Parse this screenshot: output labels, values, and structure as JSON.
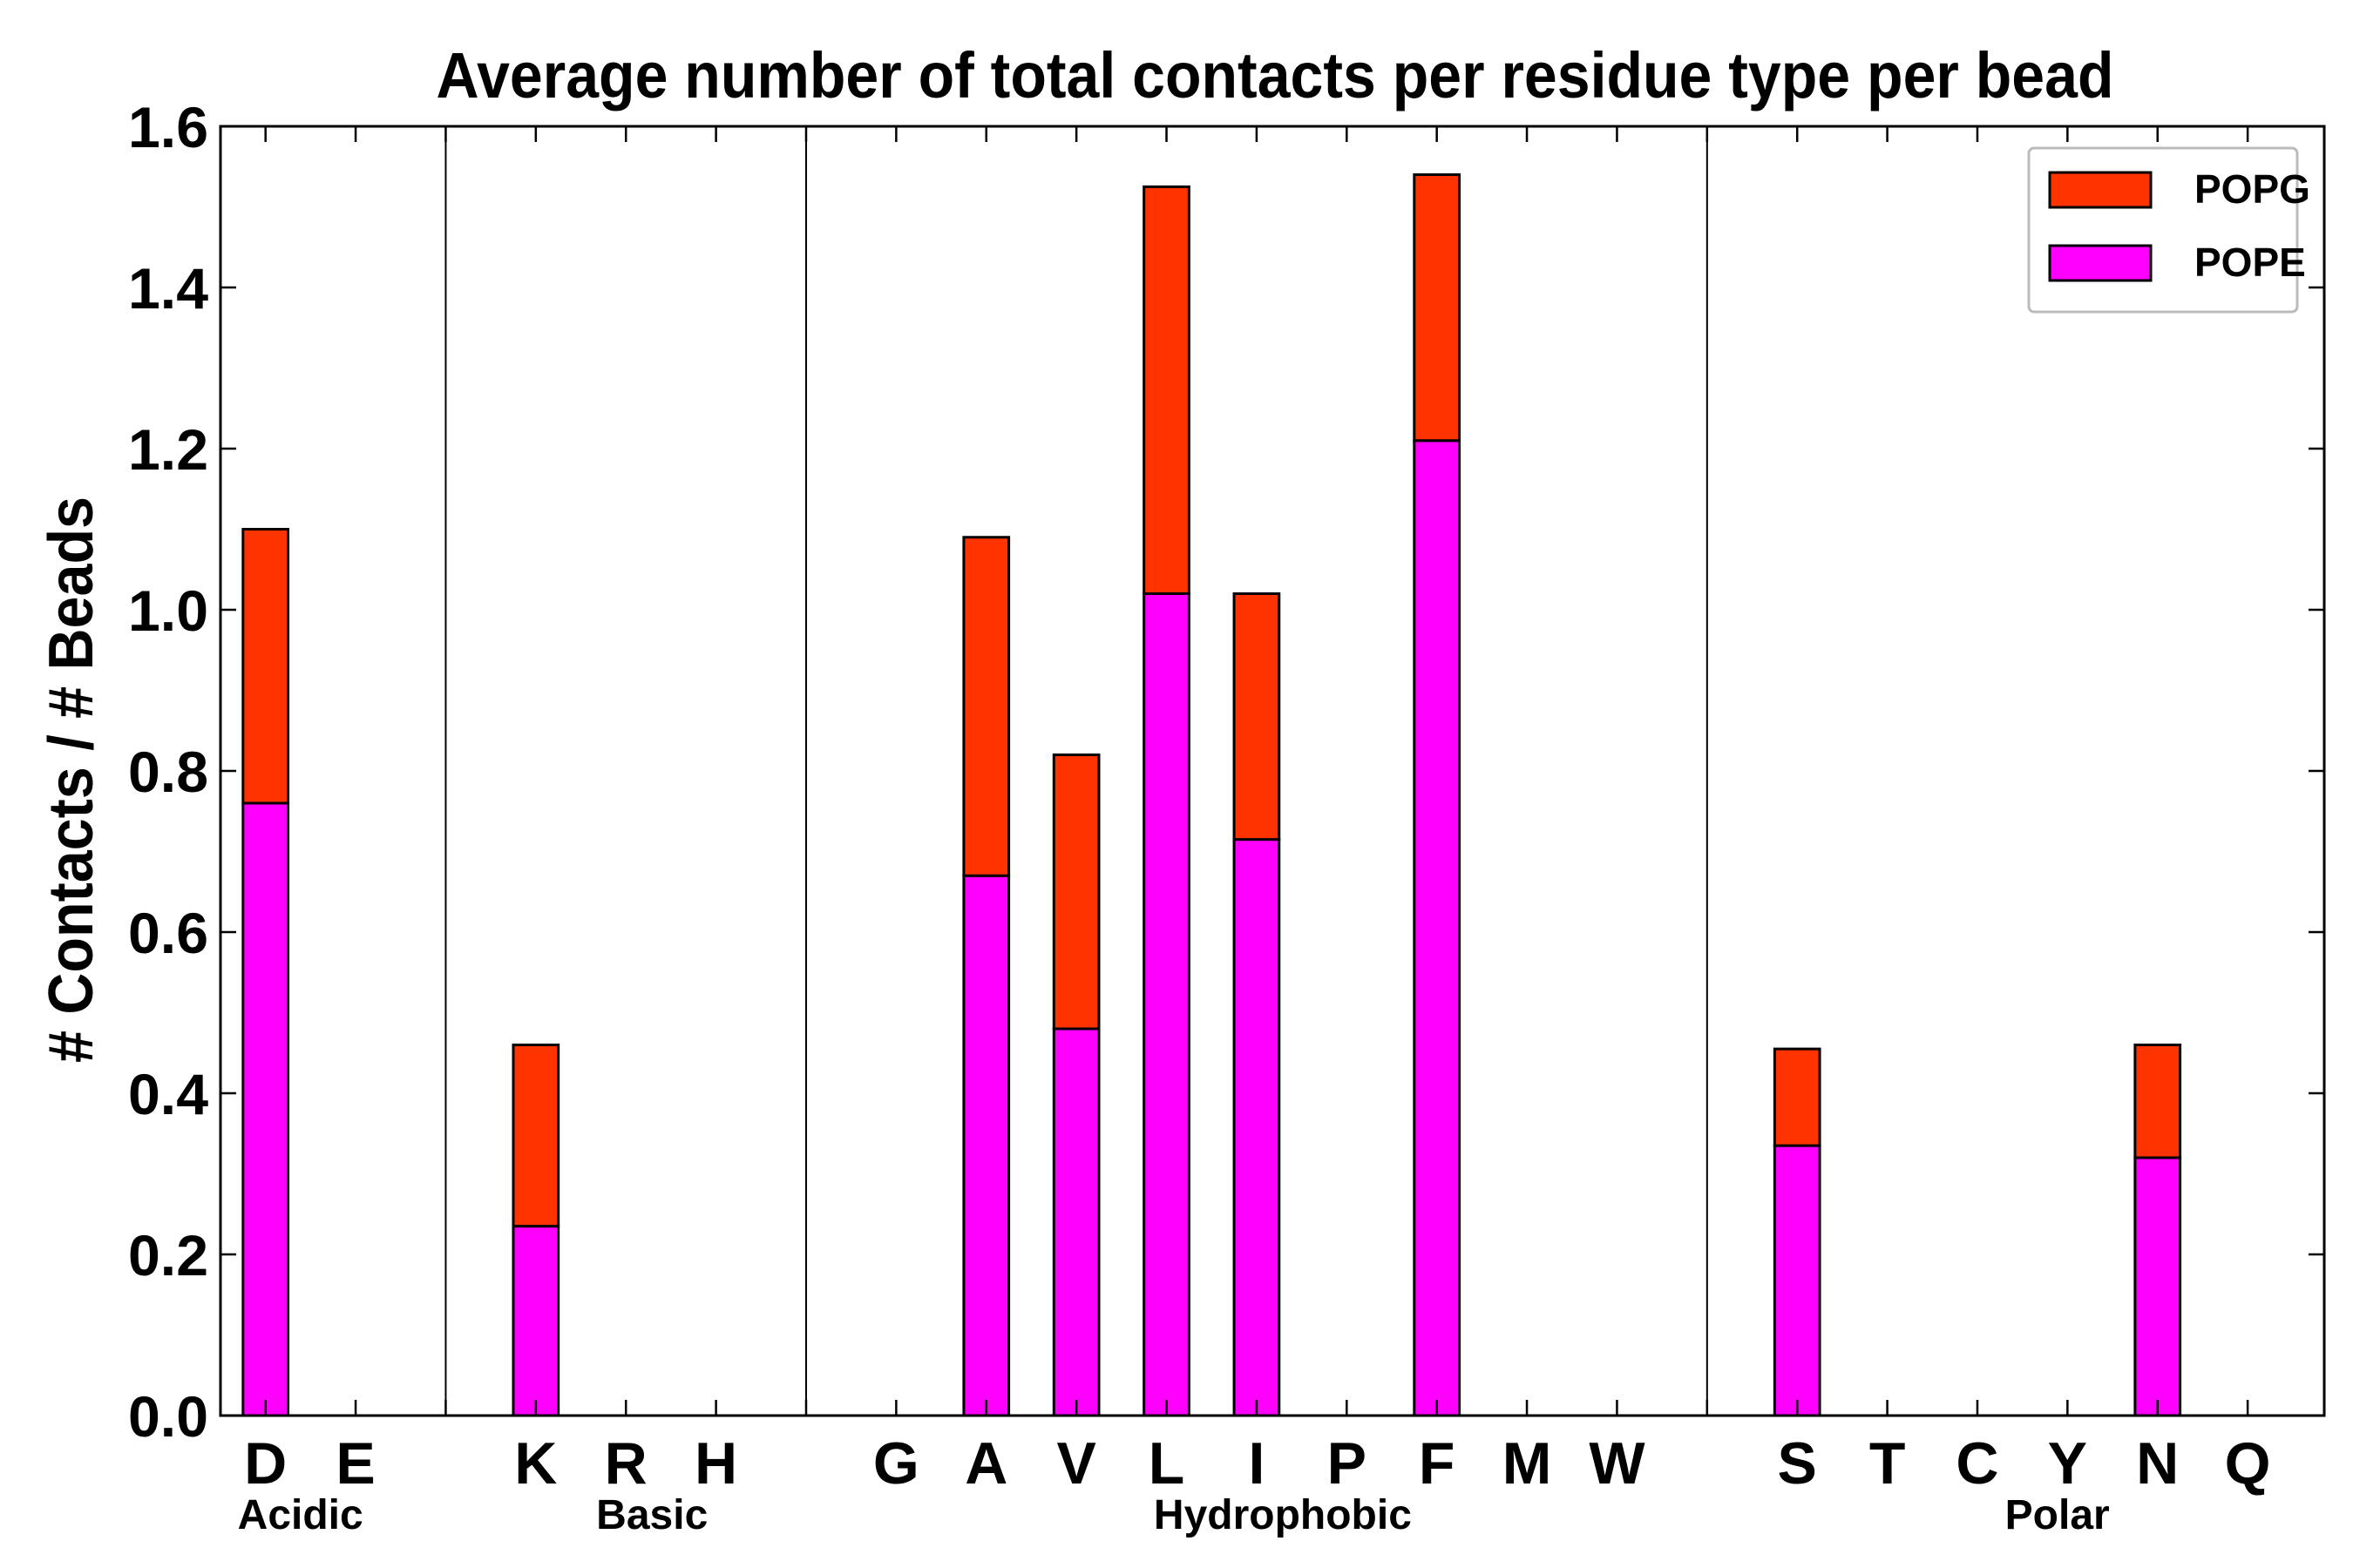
{
  "chart_data": {
    "type": "bar",
    "stacked": true,
    "title": "Average number of total contacts per residue type per bead",
    "xlabel": "",
    "ylabel": "# Contacts / # Beads",
    "ylim": [
      0,
      1.6
    ],
    "yticks": [
      "0.0",
      "0.2",
      "0.4",
      "0.6",
      "0.8",
      "1.0",
      "1.2",
      "1.4",
      "1.6"
    ],
    "grid": false,
    "legend_position": "top-right",
    "categories": [
      "D",
      "E",
      "",
      "K",
      "R",
      "H",
      "",
      "G",
      "A",
      "V",
      "L",
      "I",
      "P",
      "F",
      "M",
      "W",
      "",
      "S",
      "T",
      "C",
      "Y",
      "N",
      "Q"
    ],
    "groups": [
      {
        "label": "Acidic",
        "members": [
          "D",
          "E"
        ]
      },
      {
        "label": "Basic",
        "members": [
          "K",
          "R",
          "H"
        ]
      },
      {
        "label": "Hydrophobic",
        "members": [
          "G",
          "A",
          "V",
          "L",
          "I",
          "P",
          "F",
          "M",
          "W"
        ]
      },
      {
        "label": "Polar",
        "members": [
          "S",
          "T",
          "C",
          "Y",
          "N",
          "Q"
        ]
      }
    ],
    "series": [
      {
        "name": "POPE",
        "color": "#ff00ff",
        "values": [
          0.76,
          0,
          0,
          0.235,
          0,
          0,
          0,
          0,
          0.67,
          0.48,
          1.02,
          0.715,
          0,
          1.21,
          0,
          0,
          0,
          0.335,
          0,
          0,
          0,
          0.32,
          0
        ]
      },
      {
        "name": "POPG",
        "color": "#ff3300",
        "values": [
          0.34,
          0,
          0,
          0.225,
          0,
          0,
          0,
          0,
          0.42,
          0.34,
          0.505,
          0.305,
          0,
          0.33,
          0,
          0,
          0,
          0.12,
          0,
          0,
          0,
          0.14,
          0
        ]
      }
    ]
  }
}
